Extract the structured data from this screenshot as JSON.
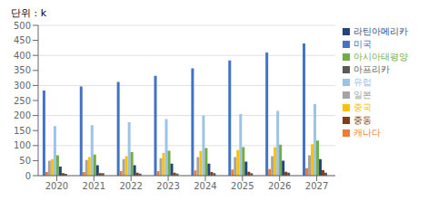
{
  "chart_data": {
    "type": "bar",
    "ylabel": "단위 : k",
    "categories": [
      "2020",
      "2021",
      "2022",
      "2023",
      "2024",
      "2025",
      "2026",
      "2027"
    ],
    "series": [
      {
        "name": "미국",
        "color": "#4472C4",
        "values": [
          283,
          297,
          312,
          332,
          357,
          383,
          410,
          440
        ]
      },
      {
        "name": "캐나다",
        "color": "#ED7D31",
        "values": [
          12,
          12,
          15,
          15,
          17,
          20,
          22,
          25
        ]
      },
      {
        "name": "일본",
        "color": "#A5A5A5",
        "values": [
          50,
          52,
          55,
          58,
          62,
          62,
          65,
          68
        ]
      },
      {
        "name": "중국",
        "color": "#FFC000",
        "values": [
          55,
          62,
          65,
          75,
          82,
          85,
          95,
          105
        ]
      },
      {
        "name": "유럽",
        "color": "#9DC3E6",
        "values": [
          165,
          168,
          178,
          188,
          200,
          205,
          215,
          238
        ]
      },
      {
        "name": "아시아태평양",
        "color": "#70AD47",
        "values": [
          68,
          70,
          78,
          83,
          92,
          95,
          103,
          117
        ]
      },
      {
        "name": "라틴아메리카",
        "color": "#264478",
        "values": [
          30,
          35,
          35,
          40,
          40,
          47,
          50,
          55
        ]
      },
      {
        "name": "중동",
        "color": "#843C0C",
        "values": [
          8,
          8,
          10,
          10,
          12,
          13,
          13,
          18
        ]
      },
      {
        "name": "아프리카",
        "color": "#595959",
        "values": [
          6,
          8,
          7,
          7,
          8,
          8,
          10,
          10
        ]
      }
    ],
    "ylim": [
      0,
      500
    ],
    "yticks": [
      0,
      50,
      100,
      150,
      200,
      250,
      300,
      350,
      400,
      450,
      500
    ],
    "grid": true,
    "legend": "right"
  }
}
